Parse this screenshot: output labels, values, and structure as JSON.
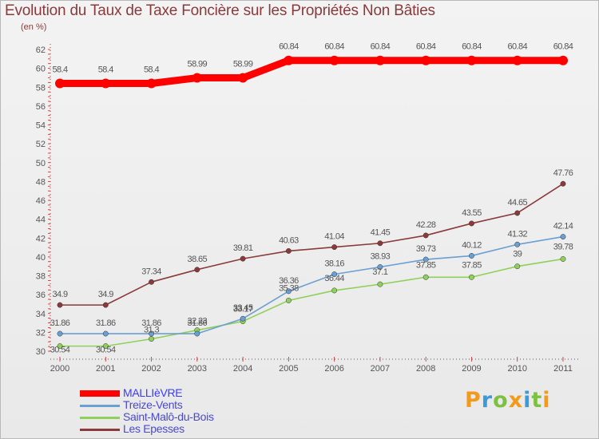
{
  "title": "Evolution du Taux de Taxe Foncière sur les Propriétés Non Bâties",
  "unit_label": "(en %)",
  "brand": {
    "text": "Proxiti",
    "letter_colors": [
      "#f29a1b",
      "#3b9bd6",
      "#7cc142",
      "#f29a1b",
      "#3b9bd6",
      "#7cc142",
      "#f29a1b"
    ]
  },
  "chart_data": {
    "type": "line",
    "title": "Evolution du Taux de Taxe Foncière sur les Propriétés Non Bâties",
    "ylabel": "(en %)",
    "x": [
      "2000",
      "2001",
      "2002",
      "2003",
      "2004",
      "2005",
      "2006",
      "2007",
      "2008",
      "2009",
      "2010",
      "2011"
    ],
    "ylim": [
      30,
      62
    ],
    "yticks": [
      "30",
      "32",
      "34",
      "36",
      "38",
      "40",
      "42",
      "44",
      "46",
      "48",
      "50",
      "52",
      "54",
      "56",
      "58",
      "60",
      "62"
    ],
    "grid": false,
    "legend_position": "bottom-left",
    "series": [
      {
        "name": "MALLIèVRE",
        "color": "#ff0000",
        "values": [
          58.4,
          58.4,
          58.4,
          58.99,
          58.99,
          60.84,
          60.84,
          60.84,
          60.84,
          60.84,
          60.84,
          60.84
        ],
        "labels": [
          "58.4",
          "58.4",
          "58.4",
          "58.99",
          "58.99",
          "60.84",
          "60.84",
          "60.84",
          "60.84",
          "60.84",
          "60.84",
          "60.84"
        ]
      },
      {
        "name": "Treize-Vents",
        "color": "#6a9fd1",
        "values": [
          31.86,
          31.86,
          31.86,
          31.86,
          33.45,
          36.36,
          38.16,
          38.93,
          39.73,
          40.12,
          41.32,
          42.14
        ],
        "labels": [
          "31.86",
          "31.86",
          "31.86",
          "31.86",
          "33.45",
          "36.36",
          "38.16",
          "38.93",
          "39.73",
          "40.12",
          "41.32",
          "42.14"
        ]
      },
      {
        "name": "Saint-Malô-du-Bois",
        "color": "#8fd05a",
        "values": [
          30.54,
          30.54,
          31.3,
          32.23,
          33.17,
          35.38,
          36.44,
          37.1,
          37.85,
          37.85,
          39,
          39.78
        ],
        "labels": [
          "30.54",
          "30.54",
          "31.3",
          "32.23",
          "33.17",
          "35.38",
          "36.44",
          "37.1",
          "37.85",
          "37.85",
          "39",
          "39.78"
        ]
      },
      {
        "name": "Les Epesses",
        "color": "#8a3a3a",
        "values": [
          34.9,
          34.9,
          37.34,
          38.65,
          39.81,
          40.63,
          41.04,
          41.45,
          42.28,
          43.55,
          44.65,
          47.76
        ],
        "labels": [
          "34.9",
          "34.9",
          "37.34",
          "38.65",
          "39.81",
          "40.63",
          "41.04",
          "41.45",
          "42.28",
          "43.55",
          "44.65",
          "47.76"
        ]
      }
    ]
  }
}
